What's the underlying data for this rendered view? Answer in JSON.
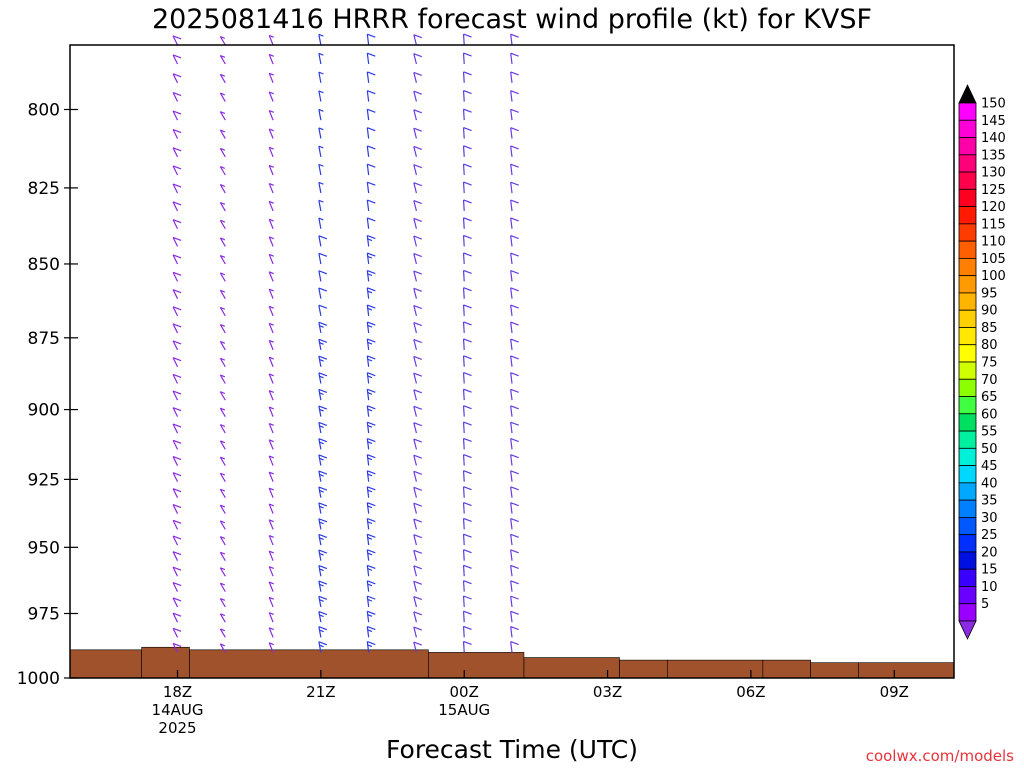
{
  "chart_data": {
    "type": "wind-barb-profile",
    "title": "2025081416 HRRR forecast wind profile (kt) for KVSF",
    "xlabel": "Forecast Time (UTC)",
    "credit": "coolwx.com/models",
    "y_axis": {
      "ticks": [
        "800",
        "825",
        "850",
        "875",
        "900",
        "925",
        "950",
        "975",
        "1000"
      ],
      "pressure_range_hPa": [
        780,
        1000
      ],
      "reversed": true
    },
    "x_axis": {
      "ticks": [
        {
          "hour": 2,
          "label": "18Z",
          "sub": [
            "14AUG",
            "2025"
          ]
        },
        {
          "hour": 5,
          "label": "21Z",
          "sub": []
        },
        {
          "hour": 8,
          "label": "00Z",
          "sub": [
            "15AUG"
          ]
        },
        {
          "hour": 11,
          "label": "03Z",
          "sub": []
        },
        {
          "hour": 14,
          "label": "06Z",
          "sub": []
        },
        {
          "hour": 17,
          "label": "09Z",
          "sub": []
        }
      ],
      "hour_range": [
        -0.25,
        18.25
      ]
    },
    "colorbar": {
      "labels": [
        "150",
        "145",
        "140",
        "135",
        "130",
        "125",
        "120",
        "115",
        "110",
        "105",
        "100",
        "95",
        "90",
        "85",
        "80",
        "75",
        "70",
        "65",
        "60",
        "55",
        "50",
        "45",
        "40",
        "35",
        "30",
        "25",
        "20",
        "15",
        "10",
        "5"
      ],
      "colors": [
        "#ff00ff",
        "#ff00d8",
        "#ff00a8",
        "#ff007a",
        "#ff004a",
        "#ff0020",
        "#ff1a00",
        "#ff3c00",
        "#ff5f00",
        "#ff8000",
        "#ff9a00",
        "#ffb400",
        "#ffd000",
        "#ffe800",
        "#ffff00",
        "#d0ff00",
        "#8cff00",
        "#40ff40",
        "#00e060",
        "#00f0a0",
        "#00f0d8",
        "#00d8ff",
        "#00a8ff",
        "#0080ff",
        "#0058ff",
        "#0030ff",
        "#0010e0",
        "#3a00ff",
        "#6a00ff",
        "#9a00ff"
      ],
      "top_arrow_color": "#000000",
      "bottom_arrow_color": "#8a2be2"
    },
    "surface": {
      "color": "#a0522d",
      "steps": [
        {
          "h0": -0.25,
          "h1": 1.25,
          "p": 989
        },
        {
          "h0": 1.25,
          "h1": 2.25,
          "p": 988
        },
        {
          "h0": 2.25,
          "h1": 7.25,
          "p": 989
        },
        {
          "h0": 7.25,
          "h1": 9.25,
          "p": 990
        },
        {
          "h0": 9.25,
          "h1": 11.25,
          "p": 992
        },
        {
          "h0": 11.25,
          "h1": 12.25,
          "p": 993
        },
        {
          "h0": 12.25,
          "h1": 14.25,
          "p": 993
        },
        {
          "h0": 14.25,
          "h1": 15.25,
          "p": 993
        },
        {
          "h0": 15.25,
          "h1": 16.25,
          "p": 994
        },
        {
          "h0": 16.25,
          "h1": 18.25,
          "p": 994
        }
      ]
    },
    "barb_columns": [
      {
        "hour": 2,
        "wind_from_deg": 325,
        "speeds_kt": [
          10,
          10,
          10,
          10,
          10,
          10,
          10,
          10,
          10,
          10,
          10,
          10,
          10,
          10,
          10,
          10,
          10,
          10,
          10,
          10,
          10,
          10,
          10,
          10,
          10,
          10,
          10,
          10,
          10,
          10,
          10,
          10,
          10,
          10,
          10,
          10,
          10
        ],
        "color": "#8a2be2"
      },
      {
        "hour": 3,
        "wind_from_deg": 320,
        "speeds_kt": [
          5,
          5,
          5,
          5,
          5,
          5,
          5,
          5,
          5,
          5,
          5,
          5,
          5,
          5,
          5,
          5,
          5,
          5,
          5,
          5,
          5,
          5,
          5,
          5,
          5,
          5,
          5,
          5,
          5,
          5,
          5,
          5,
          5,
          5,
          5,
          5,
          5
        ],
        "color": "#8a2be2"
      },
      {
        "hour": 4,
        "wind_from_deg": 330,
        "speeds_kt": [
          5,
          5,
          5,
          5,
          5,
          5,
          5,
          5,
          5,
          5,
          5,
          5,
          5,
          5,
          5,
          5,
          5,
          5,
          5,
          5,
          5,
          5,
          5,
          5,
          5,
          5,
          5,
          5,
          5,
          5,
          5,
          5,
          5,
          5,
          5,
          5,
          5
        ],
        "color": "#8a2be2"
      },
      {
        "hour": 5,
        "wind_from_deg": 345,
        "speeds_kt": [
          5,
          5,
          5,
          5,
          5,
          5,
          5,
          5,
          5,
          5,
          5,
          10,
          10,
          10,
          10,
          10,
          15,
          15,
          15,
          15,
          15,
          15,
          15,
          15,
          15,
          15,
          15,
          15,
          15,
          15,
          15,
          15,
          15,
          15,
          15,
          15,
          15
        ],
        "color": "#2b3be2"
      },
      {
        "hour": 6,
        "wind_from_deg": 350,
        "speeds_kt": [
          10,
          10,
          10,
          10,
          10,
          10,
          10,
          10,
          10,
          10,
          10,
          15,
          15,
          15,
          15,
          15,
          15,
          15,
          15,
          15,
          15,
          15,
          15,
          15,
          15,
          15,
          15,
          15,
          15,
          15,
          15,
          15,
          15,
          15,
          15,
          15,
          15
        ],
        "color": "#2b3be2"
      },
      {
        "hour": 7,
        "wind_from_deg": 340,
        "speeds_kt": [
          10,
          10,
          10,
          10,
          10,
          10,
          10,
          10,
          10,
          10,
          10,
          10,
          10,
          10,
          10,
          10,
          10,
          10,
          10,
          10,
          10,
          10,
          10,
          10,
          10,
          10,
          10,
          10,
          10,
          10,
          10,
          10,
          10,
          10,
          10,
          10,
          10
        ],
        "color": "#6a3be2"
      },
      {
        "hour": 8,
        "wind_from_deg": 355,
        "speeds_kt": [
          10,
          10,
          10,
          10,
          10,
          10,
          10,
          10,
          10,
          10,
          10,
          10,
          10,
          10,
          10,
          10,
          10,
          10,
          10,
          10,
          10,
          10,
          10,
          10,
          10,
          10,
          10,
          10,
          10,
          10,
          10,
          10,
          10,
          10,
          10,
          10,
          10
        ],
        "color": "#5a3be2"
      },
      {
        "hour": 9,
        "wind_from_deg": 350,
        "speeds_kt": [
          10,
          10,
          10,
          10,
          10,
          10,
          10,
          10,
          10,
          10,
          10,
          10,
          10,
          10,
          10,
          10,
          10,
          10,
          10,
          10,
          10,
          10,
          10,
          10,
          10,
          10,
          10,
          10,
          10,
          10,
          10,
          10,
          10,
          10,
          10,
          10,
          10
        ],
        "color": "#6a3be2"
      }
    ]
  }
}
